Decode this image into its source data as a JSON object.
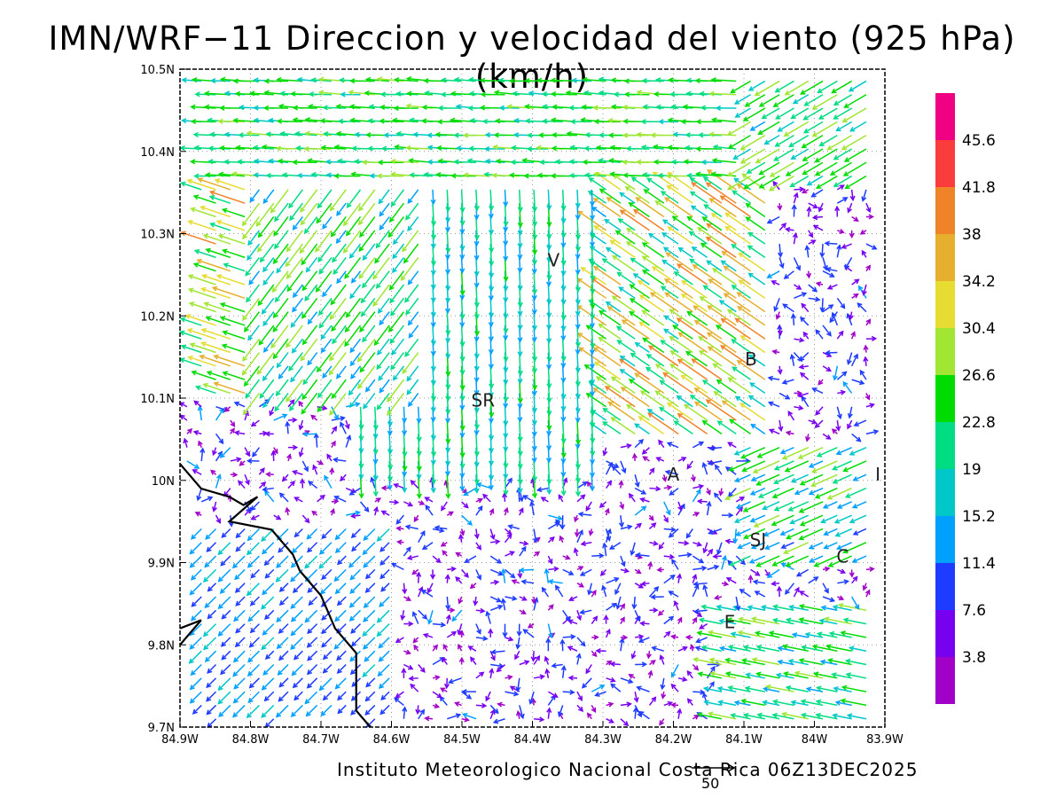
{
  "title": "IMN/WRF−11 Direccion y velocidad del viento (925 hPa)(km/h)",
  "footer": "Instituto Meteorologico Nacional Costa Rica 06Z13DEC2025",
  "reference_vector_label": "50",
  "map": {
    "lon_range": [
      -84.9,
      -83.9
    ],
    "lat_range": [
      9.7,
      10.5
    ],
    "lon_ticks": [
      {
        "value": -84.9,
        "label": "84.9W"
      },
      {
        "value": -84.8,
        "label": "84.8W"
      },
      {
        "value": -84.7,
        "label": "84.7W"
      },
      {
        "value": -84.6,
        "label": "84.6W"
      },
      {
        "value": -84.5,
        "label": "84.5W"
      },
      {
        "value": -84.4,
        "label": "84.4W"
      },
      {
        "value": -84.3,
        "label": "84.3W"
      },
      {
        "value": -84.2,
        "label": "84.2W"
      },
      {
        "value": -84.1,
        "label": "84.1W"
      },
      {
        "value": -84.0,
        "label": "84W"
      },
      {
        "value": -83.9,
        "label": "83.9W"
      }
    ],
    "lat_ticks": [
      {
        "value": 9.7,
        "label": "9.7N"
      },
      {
        "value": 9.8,
        "label": "9.8N"
      },
      {
        "value": 9.9,
        "label": "9.9N"
      },
      {
        "value": 10.0,
        "label": "10N"
      },
      {
        "value": 10.1,
        "label": "10.1N"
      },
      {
        "value": 10.2,
        "label": "10.2N"
      },
      {
        "value": 10.3,
        "label": "10.3N"
      },
      {
        "value": 10.4,
        "label": "10.4N"
      },
      {
        "value": 10.5,
        "label": "10.5N"
      }
    ],
    "cities": [
      {
        "label": "V",
        "lon": -84.37,
        "lat": 10.26
      },
      {
        "label": "SR",
        "lon": -84.47,
        "lat": 10.09
      },
      {
        "label": "B",
        "lon": -84.09,
        "lat": 10.14
      },
      {
        "label": "A",
        "lon": -84.2,
        "lat": 10.0
      },
      {
        "label": "I",
        "lon": -83.91,
        "lat": 10.0
      },
      {
        "label": "SJ",
        "lon": -84.08,
        "lat": 9.92
      },
      {
        "label": "C",
        "lon": -83.96,
        "lat": 9.9
      },
      {
        "label": "E",
        "lon": -84.12,
        "lat": 9.82
      }
    ],
    "coastline": [
      [
        -84.9,
        10.02
      ],
      [
        -84.87,
        9.99
      ],
      [
        -84.83,
        9.98
      ],
      [
        -84.81,
        9.97
      ],
      [
        -84.79,
        9.98
      ],
      [
        -84.83,
        9.95
      ],
      [
        -84.77,
        9.94
      ],
      [
        -84.74,
        9.91
      ],
      [
        -84.73,
        9.89
      ],
      [
        -84.7,
        9.86
      ],
      [
        -84.68,
        9.82
      ],
      [
        -84.65,
        9.79
      ],
      [
        -84.65,
        9.72
      ],
      [
        -84.63,
        9.7
      ]
    ],
    "coastline2": [
      [
        -84.9,
        9.82
      ],
      [
        -84.87,
        9.83
      ],
      [
        -84.9,
        9.8
      ]
    ]
  },
  "colorbar": {
    "colors": [
      "#a000c8",
      "#7800f0",
      "#1e3cff",
      "#00a0ff",
      "#00c8c8",
      "#00dc82",
      "#00dc00",
      "#a0e632",
      "#e6dc32",
      "#e6af2d",
      "#f08228",
      "#fa3c3c",
      "#f00082"
    ],
    "labels": [
      "3.8",
      "7.6",
      "11.4",
      "15.2",
      "19",
      "22.8",
      "26.6",
      "30.4",
      "34.2",
      "38",
      "41.8",
      "45.6"
    ]
  }
}
